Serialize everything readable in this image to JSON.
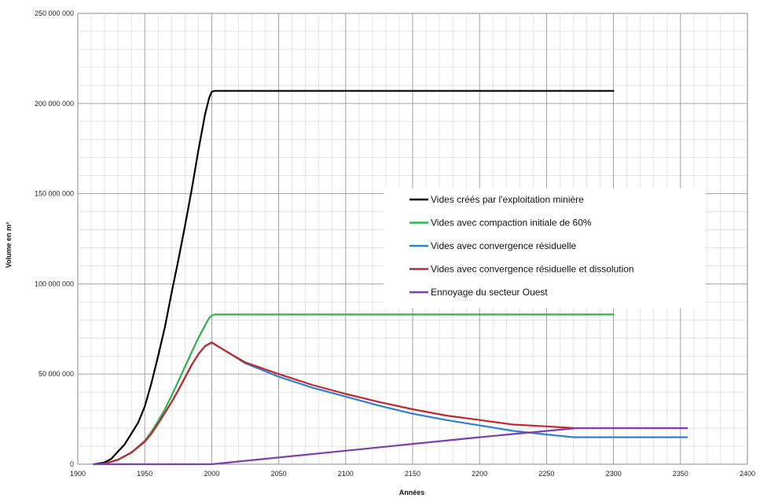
{
  "chart_data": {
    "type": "line",
    "xlabel": "Années",
    "ylabel": "Volume en m³",
    "xlim": [
      1900,
      2400
    ],
    "ylim": [
      0,
      250000000
    ],
    "x_ticks": [
      1900,
      1950,
      2000,
      2050,
      2100,
      2150,
      2200,
      2250,
      2300,
      2350,
      2400
    ],
    "x_tick_labels": [
      "1900",
      "1950",
      "2000",
      "2050",
      "2100",
      "2150",
      "2200",
      "2250",
      "2300",
      "2350",
      "2400"
    ],
    "y_ticks": [
      0,
      50000000,
      100000000,
      150000000,
      200000000,
      250000000
    ],
    "y_tick_labels": [
      "0",
      "50 000 000",
      "100 000 000",
      "150 000 000",
      "200 000 000",
      "250 000 000"
    ],
    "grid": true,
    "legend_position": "center-right",
    "series": [
      {
        "name": "Vides créés par l'exploitation minière",
        "color": "#000000",
        "x": [
          1912,
          1920,
          1925,
          1930,
          1935,
          1940,
          1945,
          1950,
          1955,
          1960,
          1965,
          1970,
          1975,
          1980,
          1985,
          1990,
          1995,
          1998,
          2000,
          2002,
          2050,
          2100,
          2150,
          2200,
          2250,
          2300
        ],
        "y": [
          0,
          1000000,
          3000000,
          7000000,
          11000000,
          17000000,
          23000000,
          32000000,
          45000000,
          60000000,
          76000000,
          95000000,
          113000000,
          132000000,
          152000000,
          174000000,
          194000000,
          203000000,
          206500000,
          207000000,
          207000000,
          207000000,
          207000000,
          207000000,
          207000000,
          207000000
        ]
      },
      {
        "name": "Vides avec compaction initiale de 60%",
        "color": "#2EB34A",
        "x": [
          1912,
          1920,
          1930,
          1940,
          1950,
          1955,
          1960,
          1965,
          1970,
          1975,
          1980,
          1985,
          1990,
          1995,
          1998,
          2000,
          2002,
          2050,
          2100,
          2150,
          2200,
          2250,
          2300
        ],
        "y": [
          0,
          300000,
          2500000,
          6500000,
          13000000,
          18000000,
          24000000,
          30500000,
          38000000,
          46000000,
          54000000,
          62000000,
          70000000,
          77000000,
          81000000,
          82500000,
          83000000,
          83000000,
          83000000,
          83000000,
          83000000,
          83000000,
          83000000
        ]
      },
      {
        "name": "Vides avec convergence résiduelle",
        "color": "#2F7ED8",
        "x": [
          1912,
          1920,
          1930,
          1940,
          1950,
          1955,
          1960,
          1965,
          1970,
          1975,
          1980,
          1985,
          1990,
          1995,
          2000,
          2010,
          2025,
          2050,
          2075,
          2100,
          2125,
          2150,
          2175,
          2200,
          2225,
          2250,
          2270,
          2300,
          2320,
          2355
        ],
        "y": [
          0,
          300000,
          2500000,
          6500000,
          12500000,
          17000000,
          22500000,
          28500000,
          34500000,
          41000000,
          48000000,
          55000000,
          61000000,
          65500000,
          67500000,
          63000000,
          56000000,
          48500000,
          42500000,
          37500000,
          32500000,
          28000000,
          24500000,
          21500000,
          18500000,
          16500000,
          15000000,
          15000000,
          15000000,
          15000000
        ]
      },
      {
        "name": "Vides avec convergence résiduelle et dissolution",
        "color": "#C0282C",
        "x": [
          1912,
          1920,
          1930,
          1940,
          1950,
          1955,
          1960,
          1965,
          1970,
          1975,
          1980,
          1985,
          1990,
          1995,
          2000,
          2010,
          2025,
          2050,
          2075,
          2100,
          2125,
          2150,
          2175,
          2200,
          2225,
          2250,
          2272
        ],
        "y": [
          0,
          300000,
          2500000,
          6500000,
          12500000,
          17000000,
          22500000,
          28500000,
          34500000,
          41000000,
          48000000,
          55000000,
          61000000,
          65500000,
          67500000,
          63000000,
          56500000,
          50000000,
          44000000,
          39000000,
          34500000,
          30500000,
          27000000,
          24500000,
          22000000,
          21000000,
          20000000
        ]
      },
      {
        "name": "Ennoyage du secteur Ouest",
        "color": "#7B3FB2",
        "x": [
          1912,
          2000,
          2100,
          2200,
          2272,
          2300,
          2355
        ],
        "y": [
          0,
          0,
          7500000,
          15000000,
          20000000,
          20000000,
          20000000
        ]
      }
    ]
  }
}
